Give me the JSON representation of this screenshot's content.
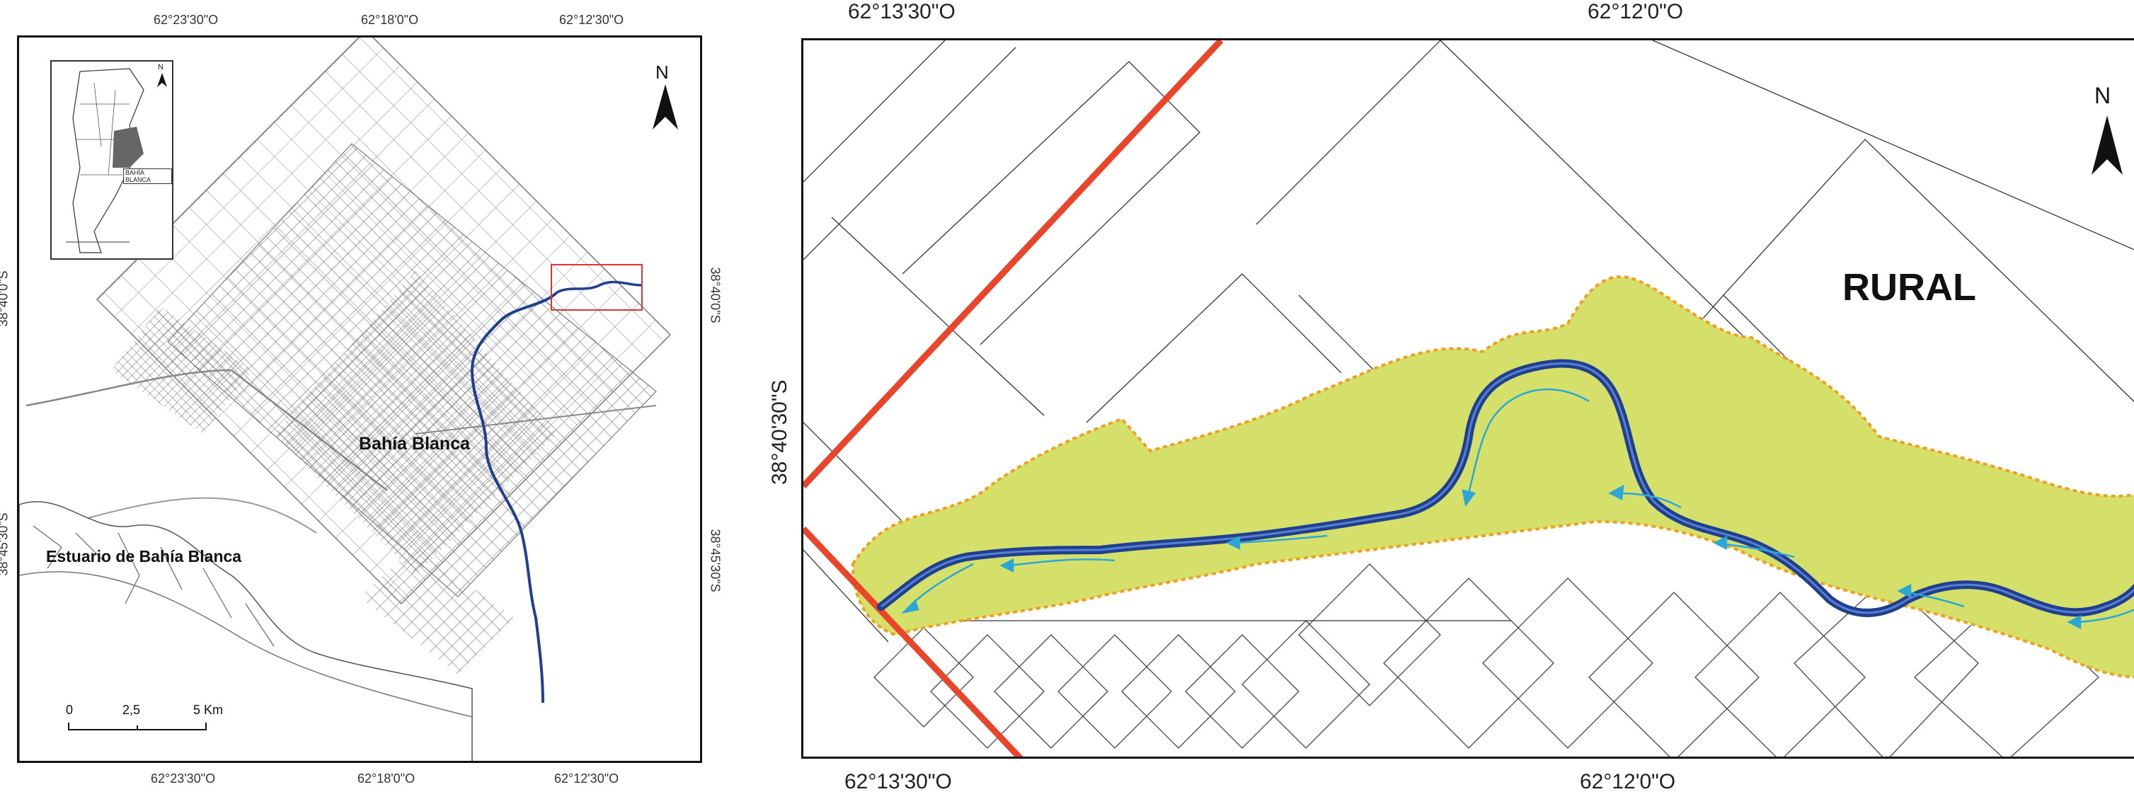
{
  "left_map": {
    "top_ticks": [
      "62°23'30\"O",
      "62°18'0\"O",
      "62°12'30\"O"
    ],
    "bottom_ticks": [
      "62°23'30\"O",
      "62°18'0\"O",
      "62°12'30\"O"
    ],
    "left_ticks": [
      "38°40'0\"S",
      "38°45'30\"S"
    ],
    "right_ticks": [
      "38°40'0\"S",
      "38°45'30\"S"
    ],
    "city_label": "Bahía Blanca",
    "estuary_label": "Estuario de Bahía Blanca",
    "north": "N",
    "scale": {
      "zero": "0",
      "mid": "2,5",
      "end": "5 Km"
    },
    "inset": {
      "label": "BAHÍA BLANCA",
      "north": "N"
    }
  },
  "right_map": {
    "top_ticks": [
      "62°13'30\"O",
      "62°12'0\"O"
    ],
    "bottom_ticks": [
      "62°13'30\"O",
      "62°12'0\"O"
    ],
    "left_tick": "38°40'30\"S",
    "zone_label": "RURAL",
    "north": "N"
  },
  "colors": {
    "river": "#1f3f8f",
    "floodplain": "#d4e06a",
    "floodplain_border": "#f0a020",
    "road": "#e8452b",
    "flow_arrow": "#2aa7d6",
    "highlight_box": "#d93636",
    "street_grid": "#777777"
  },
  "icons": [
    "north-arrow-icon",
    "flow-direction-arrow-icon"
  ]
}
